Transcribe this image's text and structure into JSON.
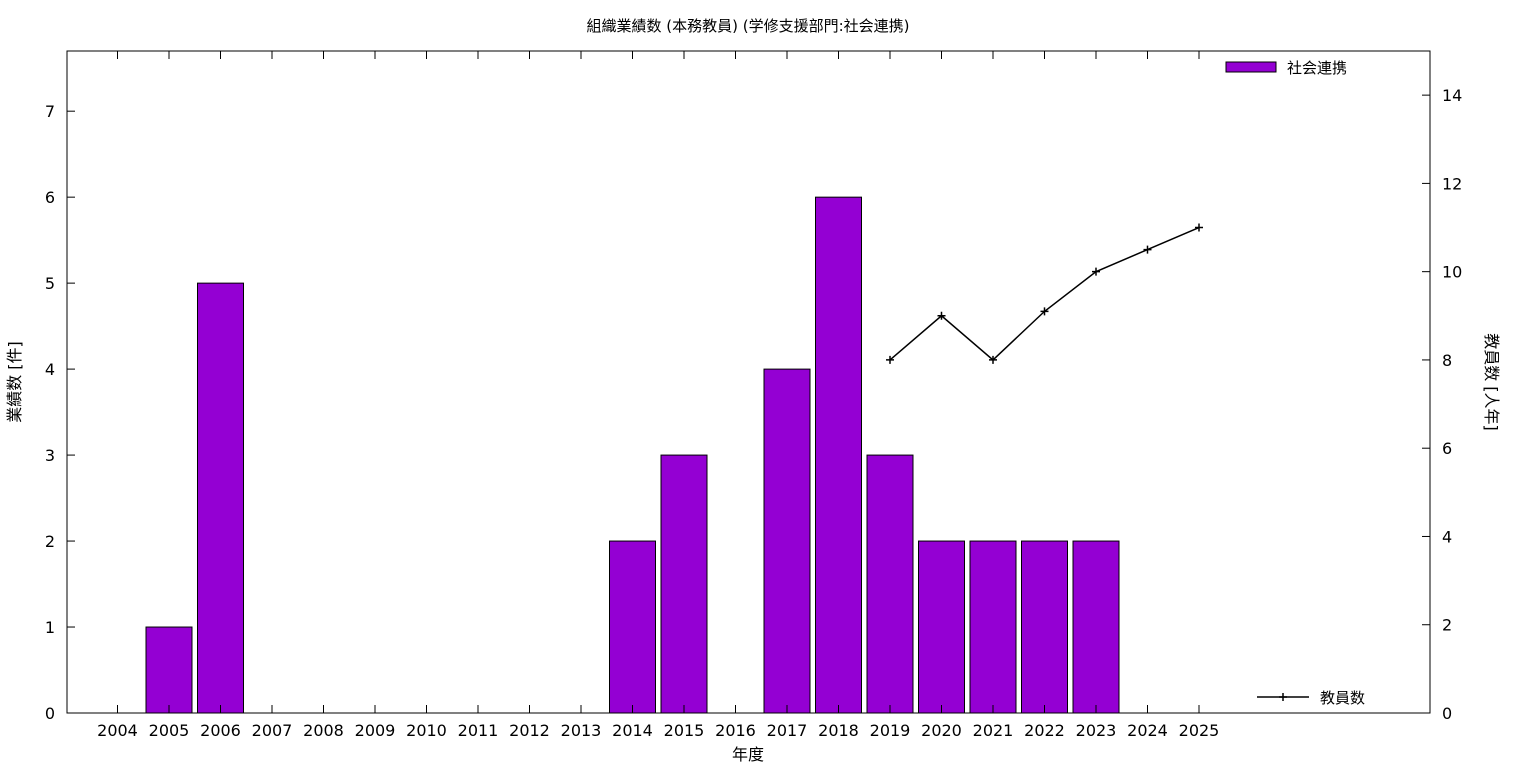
{
  "chart_data": {
    "type": "bar",
    "title": "組織業績数 (本務教員) (学修支援部門:社会連携)",
    "xlabel": "年度",
    "ylabel": "業績数 [件]",
    "y2label": "教員数 [人年]",
    "categories": [
      "2004",
      "2005",
      "2006",
      "2007",
      "2008",
      "2009",
      "2010",
      "2011",
      "2012",
      "2013",
      "2014",
      "2015",
      "2016",
      "2017",
      "2018",
      "2019",
      "2020",
      "2021",
      "2022",
      "2023",
      "2024",
      "2025"
    ],
    "ylim": [
      0,
      7.7
    ],
    "y2lim": [
      0,
      15
    ],
    "yticks": [
      0,
      1,
      2,
      3,
      4,
      5,
      6,
      7
    ],
    "y2ticks": [
      0,
      2,
      4,
      6,
      8,
      10,
      12,
      14
    ],
    "grid": false,
    "series": [
      {
        "name": "社会連携",
        "type": "bar",
        "axis": "left",
        "color": "#9400d3",
        "values": [
          0,
          1,
          5,
          0,
          0,
          0,
          0,
          0,
          0,
          0,
          2,
          3,
          0,
          4,
          6,
          3,
          2,
          2,
          2,
          2,
          0,
          0
        ]
      },
      {
        "name": "教員数",
        "type": "line",
        "axis": "right",
        "color": "#000000",
        "x": [
          "2019",
          "2020",
          "2021",
          "2022",
          "2023",
          "2024",
          "2025"
        ],
        "values": [
          8,
          9,
          8,
          9.1,
          10,
          10.5,
          11
        ]
      }
    ],
    "legend": [
      "top-right",
      "bottom-right"
    ]
  }
}
